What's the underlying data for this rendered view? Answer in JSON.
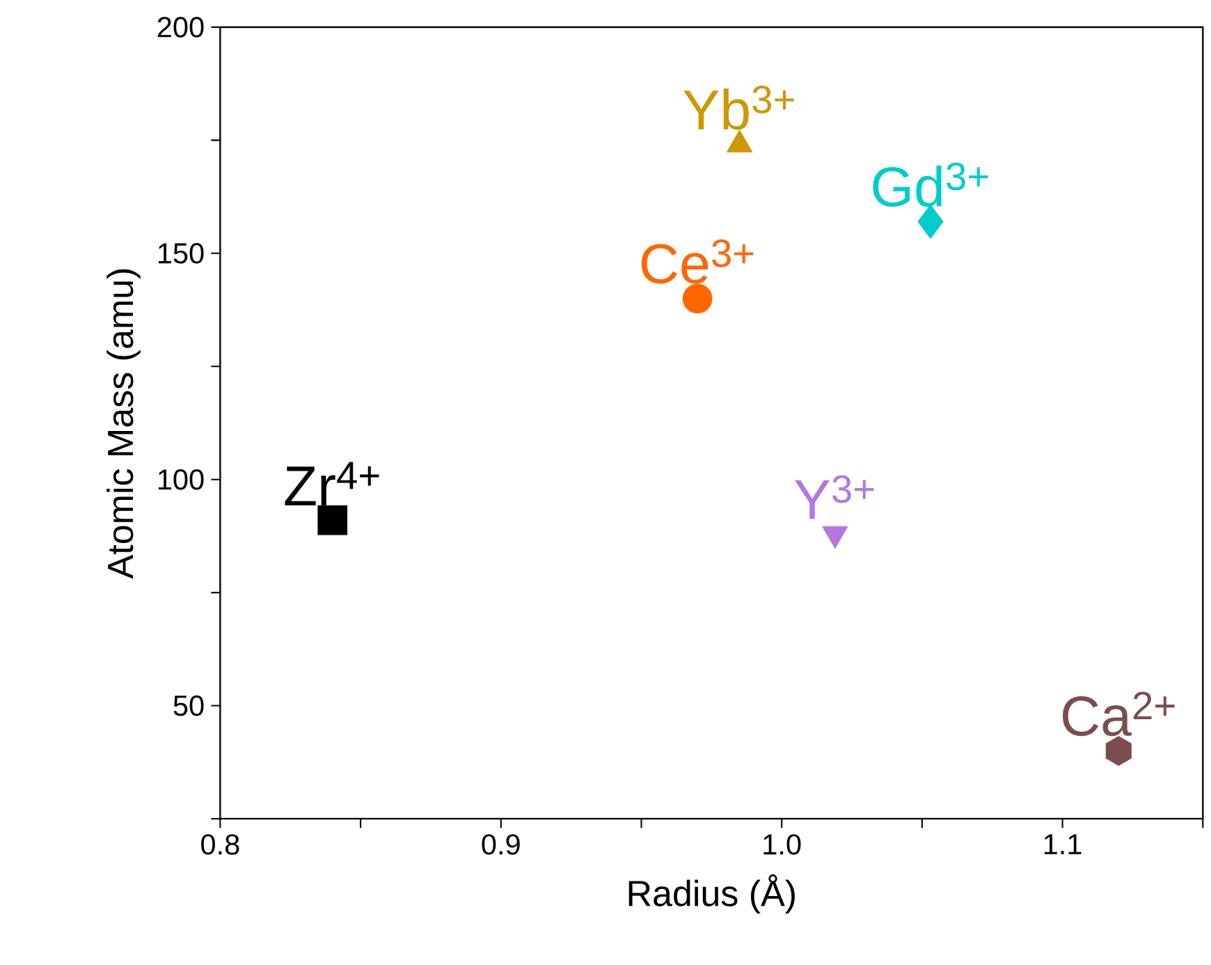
{
  "chart_data": {
    "type": "scatter",
    "xlabel": "Radius (Å)",
    "ylabel": "Atomic Mass (amu)",
    "xlim": [
      0.8,
      1.15
    ],
    "ylim": [
      25,
      200
    ],
    "xticks": [
      0.8,
      {
        "value": 0.85,
        "label": null
      },
      0.9,
      {
        "value": 0.95,
        "label": null
      },
      {
        "value": 1,
        "label": "1.0"
      },
      {
        "value": 1.05,
        "label": null
      },
      1.1,
      {
        "value": 1.15,
        "label": null
      }
    ],
    "yticks": [
      {
        "value": 25,
        "label": null
      },
      50,
      {
        "value": 75,
        "label": null
      },
      100,
      {
        "value": 125,
        "label": null
      },
      150,
      {
        "value": 175,
        "label": null
      },
      200
    ],
    "grid": false,
    "series": [
      {
        "name": "Zr$^{4+}$",
        "color": "#000000",
        "marker": "square",
        "x": [
          0.84
        ],
        "values": [
          91
        ]
      },
      {
        "name": "Ce$^{3+}$",
        "color": "#ff6600",
        "marker": "circle",
        "x": [
          0.97
        ],
        "values": [
          140
        ]
      },
      {
        "name": "Yb$^{3+}$",
        "color": "#cc9900",
        "marker": "triangle",
        "x": [
          0.985
        ],
        "values": [
          174
        ]
      },
      {
        "name": "Gd$^{3+}$",
        "color": "#00cccc",
        "marker": "diamond",
        "x": [
          1.053
        ],
        "values": [
          157
        ]
      },
      {
        "name": "Y$^{3+}$",
        "color": "#b477e0",
        "marker": "triangle-down",
        "x": [
          1.019
        ],
        "values": [
          88
        ]
      },
      {
        "name": "Ca$^{2+}$",
        "color": "#7a4e4e",
        "x": [
          1.12
        ],
        "values": [
          40
        ]
      }
    ]
  }
}
